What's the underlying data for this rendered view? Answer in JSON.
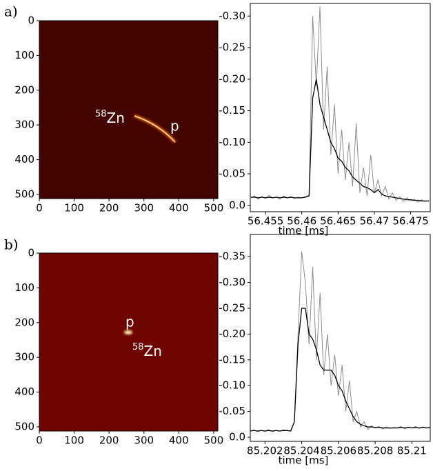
{
  "chart_data": [
    {
      "type": "image",
      "label": "a)",
      "xlim": [
        0,
        512
      ],
      "ylim": [
        512,
        0
      ],
      "xticks": [
        0,
        100,
        200,
        300,
        400,
        500
      ],
      "yticks": [
        0,
        100,
        200,
        300,
        400,
        500
      ],
      "annotations": [
        {
          "sup": "58",
          "text": "Zn"
        },
        {
          "text": "p"
        }
      ]
    },
    {
      "type": "line",
      "xlabel": "time [ms]",
      "xlim": [
        56.4529,
        56.4777
      ],
      "ylim": [
        0.01,
        -0.32
      ],
      "xticks": [
        56.455,
        56.46,
        56.465,
        56.47,
        56.475
      ],
      "yticks": [
        {
          "value": 0,
          "label": "0.0"
        },
        -0.05,
        {
          "value": -0.1,
          "label": "-0.10"
        },
        -0.15,
        {
          "value": -0.2,
          "label": "-0.20"
        },
        -0.25,
        {
          "value": -0.3,
          "label": "-0.30"
        }
      ],
      "x": [
        56.453,
        56.4535,
        56.454,
        56.4545,
        56.455,
        56.4555,
        56.456,
        56.4565,
        56.457,
        56.4575,
        56.458,
        56.4585,
        56.459,
        56.4595,
        56.46,
        56.4605,
        56.461,
        56.4615,
        56.462,
        56.4625,
        56.463,
        56.4635,
        56.464,
        56.4645,
        56.465,
        56.4655,
        56.466,
        56.4665,
        56.467,
        56.4675,
        56.468,
        56.4685,
        56.469,
        56.4695,
        56.47,
        56.4705,
        56.471,
        56.4715,
        56.472,
        56.4725,
        56.473,
        56.4735,
        56.474,
        56.4745,
        56.475,
        56.4755,
        56.476,
        56.4765,
        56.477,
        56.4775
      ],
      "series": [
        {
          "color": "#8c8c8c",
          "values": [
            -0.012,
            -0.015,
            -0.01,
            -0.014,
            -0.011,
            -0.016,
            -0.012,
            -0.013,
            -0.01,
            -0.015,
            -0.012,
            -0.014,
            -0.011,
            -0.013,
            -0.012,
            -0.014,
            -0.016,
            -0.3,
            -0.19,
            -0.315,
            -0.12,
            -0.22,
            -0.08,
            -0.16,
            -0.05,
            -0.12,
            -0.04,
            -0.1,
            -0.03,
            -0.13,
            -0.02,
            -0.06,
            -0.015,
            -0.08,
            -0.02,
            -0.04,
            -0.015,
            -0.03,
            -0.01,
            -0.02,
            -0.008,
            -0.014,
            -0.006,
            -0.012,
            -0.007,
            -0.01,
            -0.005,
            -0.009,
            -0.006,
            -0.008
          ]
        },
        {
          "color": "#000000",
          "values": [
            -0.013,
            -0.013,
            -0.012,
            -0.013,
            -0.012,
            -0.013,
            -0.012,
            -0.013,
            -0.012,
            -0.013,
            -0.012,
            -0.013,
            -0.012,
            -0.012,
            -0.012,
            -0.013,
            -0.015,
            -0.17,
            -0.2,
            -0.16,
            -0.14,
            -0.12,
            -0.1,
            -0.09,
            -0.075,
            -0.07,
            -0.06,
            -0.055,
            -0.045,
            -0.04,
            -0.035,
            -0.03,
            -0.028,
            -0.025,
            -0.02,
            -0.025,
            -0.018,
            -0.015,
            -0.014,
            -0.013,
            -0.012,
            -0.011,
            -0.01,
            -0.009,
            -0.009,
            -0.008,
            -0.008,
            -0.007,
            -0.007,
            -0.007
          ]
        }
      ]
    },
    {
      "type": "image",
      "label": "b)",
      "xlim": [
        0,
        512
      ],
      "ylim": [
        512,
        0
      ],
      "xticks": [
        0,
        100,
        200,
        300,
        400,
        500
      ],
      "yticks": [
        0,
        100,
        200,
        300,
        400,
        500
      ],
      "annotations": [
        {
          "text": "p"
        },
        {
          "sup": "58",
          "text": "Zn"
        }
      ]
    },
    {
      "type": "line",
      "xlabel": "time [ms]",
      "xlim": [
        85.2012,
        85.211
      ],
      "ylim": [
        0.008,
        -0.393
      ],
      "xticks": [
        85.202,
        85.204,
        85.206,
        85.208,
        85.21
      ],
      "yticks": [
        {
          "value": 0,
          "label": "0.0"
        },
        -0.05,
        {
          "value": -0.1,
          "label": "-0.10"
        },
        -0.15,
        {
          "value": -0.2,
          "label": "-0.20"
        },
        -0.25,
        {
          "value": -0.3,
          "label": "-0.30"
        },
        -0.35
      ],
      "x": [
        85.2012,
        85.2014,
        85.2016,
        85.2018,
        85.202,
        85.2022,
        85.2024,
        85.2026,
        85.2028,
        85.203,
        85.2032,
        85.2034,
        85.2036,
        85.2038,
        85.204,
        85.2042,
        85.2044,
        85.2046,
        85.2048,
        85.205,
        85.2052,
        85.2054,
        85.2056,
        85.2058,
        85.206,
        85.2062,
        85.2064,
        85.2066,
        85.2068,
        85.207,
        85.2072,
        85.2074,
        85.2076,
        85.2078,
        85.208,
        85.2082,
        85.2084,
        85.2086,
        85.2088,
        85.209,
        85.2092,
        85.2094,
        85.2096,
        85.2098,
        85.21,
        85.2102,
        85.2104,
        85.2106,
        85.2108,
        85.211
      ],
      "series": [
        {
          "color": "#8c8c8c",
          "values": [
            -0.012,
            -0.014,
            -0.011,
            -0.013,
            -0.012,
            -0.015,
            -0.011,
            -0.013,
            -0.012,
            -0.014,
            -0.013,
            -0.012,
            -0.03,
            -0.2,
            -0.36,
            -0.3,
            -0.18,
            -0.33,
            -0.15,
            -0.28,
            -0.12,
            -0.2,
            -0.1,
            -0.16,
            -0.08,
            -0.14,
            -0.05,
            -0.11,
            -0.03,
            -0.05,
            -0.02,
            -0.03,
            -0.015,
            -0.022,
            -0.018,
            -0.021,
            -0.016,
            -0.02,
            -0.017,
            -0.019,
            -0.018,
            -0.021,
            -0.016,
            -0.02,
            -0.018,
            -0.021,
            -0.017,
            -0.02,
            -0.018,
            -0.019
          ]
        },
        {
          "color": "#000000",
          "values": [
            -0.012,
            -0.013,
            -0.012,
            -0.013,
            -0.012,
            -0.013,
            -0.012,
            -0.013,
            -0.012,
            -0.013,
            -0.013,
            -0.012,
            -0.03,
            -0.18,
            -0.25,
            -0.25,
            -0.2,
            -0.19,
            -0.17,
            -0.14,
            -0.13,
            -0.13,
            -0.13,
            -0.12,
            -0.1,
            -0.09,
            -0.07,
            -0.055,
            -0.04,
            -0.03,
            -0.025,
            -0.022,
            -0.02,
            -0.02,
            -0.019,
            -0.019,
            -0.018,
            -0.018,
            -0.018,
            -0.018,
            -0.018,
            -0.019,
            -0.018,
            -0.019,
            -0.018,
            -0.019,
            -0.018,
            -0.019,
            -0.018,
            -0.019
          ]
        }
      ]
    }
  ]
}
